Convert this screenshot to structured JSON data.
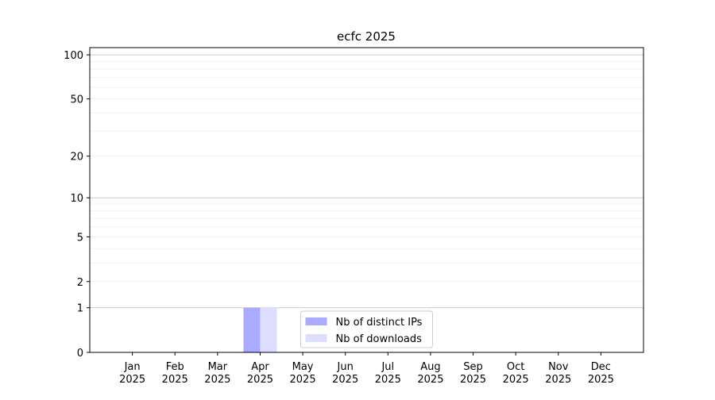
{
  "chart_data": {
    "type": "bar",
    "title": "ecfc 2025",
    "categories": [
      "Jan\n2025",
      "Feb\n2025",
      "Mar\n2025",
      "Apr\n2025",
      "May\n2025",
      "Jun\n2025",
      "Jul\n2025",
      "Aug\n2025",
      "Sep\n2025",
      "Oct\n2025",
      "Nov\n2025",
      "Dec\n2025"
    ],
    "series": [
      {
        "name": "Nb of distinct IPs",
        "color": "#aaaaff",
        "values": [
          0,
          0,
          0,
          1,
          0,
          0,
          0,
          0,
          0,
          0,
          0,
          0
        ]
      },
      {
        "name": "Nb of downloads",
        "color": "#ddddff",
        "values": [
          0,
          0,
          0,
          1,
          0,
          0,
          0,
          0,
          0,
          0,
          0,
          0
        ]
      }
    ],
    "yscale": "log1p",
    "ylim": [
      0,
      112
    ],
    "yticks": [
      0,
      1,
      2,
      5,
      10,
      20,
      50,
      100
    ],
    "major_grid": [
      1,
      10,
      100
    ],
    "minor_grid": [
      2,
      3,
      4,
      5,
      6,
      7,
      8,
      9,
      20,
      30,
      40,
      50,
      60,
      70,
      80,
      90
    ],
    "legend": "lower center"
  }
}
